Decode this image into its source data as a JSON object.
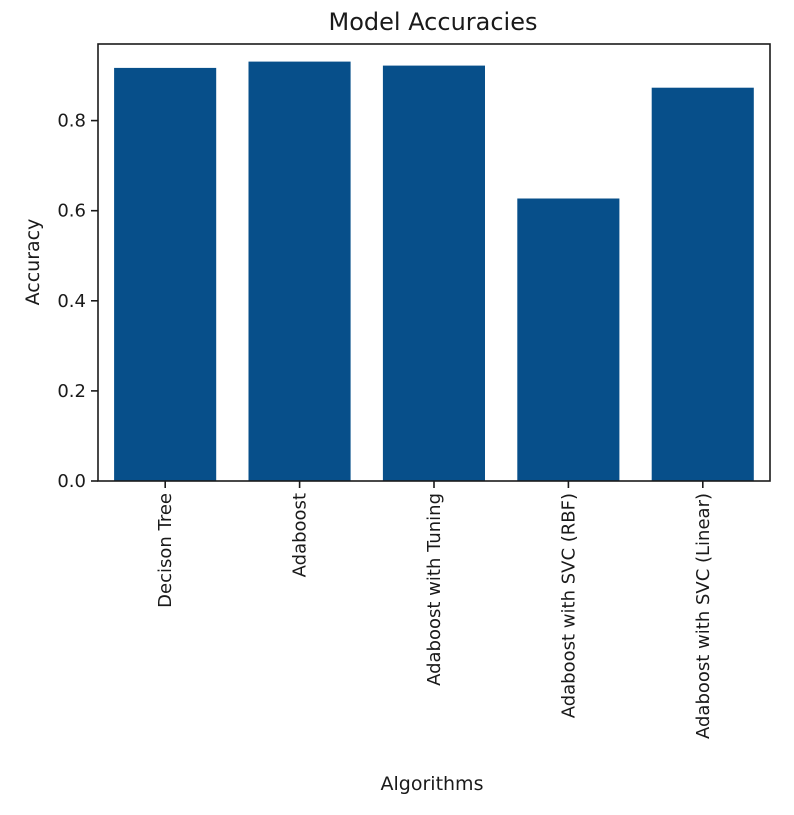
{
  "chart_data": {
    "type": "bar",
    "title": "Model Accuracies",
    "xlabel": "Algorithms",
    "ylabel": "Accuracy",
    "categories": [
      "Decison Tree",
      "Adaboost",
      "Adaboost with Tuning",
      "Adaboost with SVC (RBF)",
      "Adaboost with SVC (Linear)"
    ],
    "values": [
      0.917,
      0.931,
      0.922,
      0.627,
      0.873
    ],
    "ylim": [
      0,
      0.97
    ],
    "yticks": [
      0.0,
      0.2,
      0.4,
      0.6,
      0.8
    ],
    "ytick_labels": [
      "0.0",
      "0.2",
      "0.4",
      "0.6",
      "0.8"
    ],
    "xtick_rotation": "vertical",
    "grid": false,
    "legend": "none",
    "bar_color": "#074f8a"
  }
}
